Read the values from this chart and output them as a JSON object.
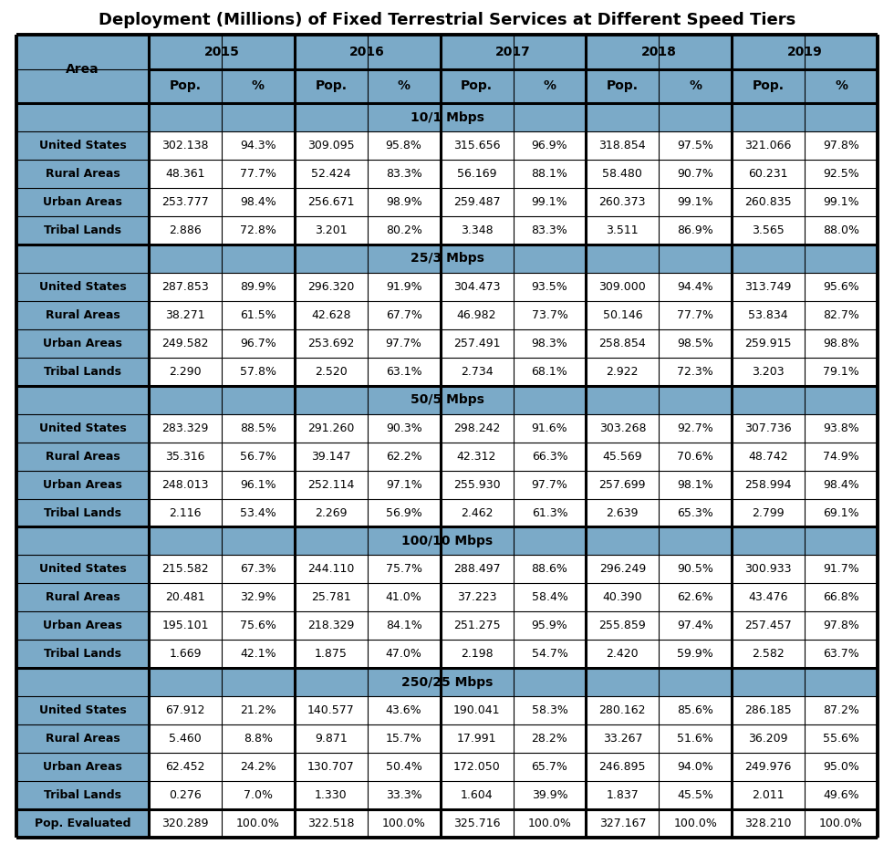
{
  "title": "Deployment (Millions) of Fixed Terrestrial Services at Different Speed Tiers",
  "header_years": [
    "2015",
    "2016",
    "2017",
    "2018",
    "2019"
  ],
  "sections": [
    {
      "tier": "10/1 Mbps",
      "rows": [
        [
          "United States",
          "302.138",
          "94.3%",
          "309.095",
          "95.8%",
          "315.656",
          "96.9%",
          "318.854",
          "97.5%",
          "321.066",
          "97.8%"
        ],
        [
          "Rural Areas",
          "48.361",
          "77.7%",
          "52.424",
          "83.3%",
          "56.169",
          "88.1%",
          "58.480",
          "90.7%",
          "60.231",
          "92.5%"
        ],
        [
          "Urban Areas",
          "253.777",
          "98.4%",
          "256.671",
          "98.9%",
          "259.487",
          "99.1%",
          "260.373",
          "99.1%",
          "260.835",
          "99.1%"
        ],
        [
          "Tribal Lands",
          "2.886",
          "72.8%",
          "3.201",
          "80.2%",
          "3.348",
          "83.3%",
          "3.511",
          "86.9%",
          "3.565",
          "88.0%"
        ]
      ]
    },
    {
      "tier": "25/3 Mbps",
      "rows": [
        [
          "United States",
          "287.853",
          "89.9%",
          "296.320",
          "91.9%",
          "304.473",
          "93.5%",
          "309.000",
          "94.4%",
          "313.749",
          "95.6%"
        ],
        [
          "Rural Areas",
          "38.271",
          "61.5%",
          "42.628",
          "67.7%",
          "46.982",
          "73.7%",
          "50.146",
          "77.7%",
          "53.834",
          "82.7%"
        ],
        [
          "Urban Areas",
          "249.582",
          "96.7%",
          "253.692",
          "97.7%",
          "257.491",
          "98.3%",
          "258.854",
          "98.5%",
          "259.915",
          "98.8%"
        ],
        [
          "Tribal Lands",
          "2.290",
          "57.8%",
          "2.520",
          "63.1%",
          "2.734",
          "68.1%",
          "2.922",
          "72.3%",
          "3.203",
          "79.1%"
        ]
      ]
    },
    {
      "tier": "50/5 Mbps",
      "rows": [
        [
          "United States",
          "283.329",
          "88.5%",
          "291.260",
          "90.3%",
          "298.242",
          "91.6%",
          "303.268",
          "92.7%",
          "307.736",
          "93.8%"
        ],
        [
          "Rural Areas",
          "35.316",
          "56.7%",
          "39.147",
          "62.2%",
          "42.312",
          "66.3%",
          "45.569",
          "70.6%",
          "48.742",
          "74.9%"
        ],
        [
          "Urban Areas",
          "248.013",
          "96.1%",
          "252.114",
          "97.1%",
          "255.930",
          "97.7%",
          "257.699",
          "98.1%",
          "258.994",
          "98.4%"
        ],
        [
          "Tribal Lands",
          "2.116",
          "53.4%",
          "2.269",
          "56.9%",
          "2.462",
          "61.3%",
          "2.639",
          "65.3%",
          "2.799",
          "69.1%"
        ]
      ]
    },
    {
      "tier": "100/10 Mbps",
      "rows": [
        [
          "United States",
          "215.582",
          "67.3%",
          "244.110",
          "75.7%",
          "288.497",
          "88.6%",
          "296.249",
          "90.5%",
          "300.933",
          "91.7%"
        ],
        [
          "Rural Areas",
          "20.481",
          "32.9%",
          "25.781",
          "41.0%",
          "37.223",
          "58.4%",
          "40.390",
          "62.6%",
          "43.476",
          "66.8%"
        ],
        [
          "Urban Areas",
          "195.101",
          "75.6%",
          "218.329",
          "84.1%",
          "251.275",
          "95.9%",
          "255.859",
          "97.4%",
          "257.457",
          "97.8%"
        ],
        [
          "Tribal Lands",
          "1.669",
          "42.1%",
          "1.875",
          "47.0%",
          "2.198",
          "54.7%",
          "2.420",
          "59.9%",
          "2.582",
          "63.7%"
        ]
      ]
    },
    {
      "tier": "250/25 Mbps",
      "rows": [
        [
          "United States",
          "67.912",
          "21.2%",
          "140.577",
          "43.6%",
          "190.041",
          "58.3%",
          "280.162",
          "85.6%",
          "286.185",
          "87.2%"
        ],
        [
          "Rural Areas",
          "5.460",
          "8.8%",
          "9.871",
          "15.7%",
          "17.991",
          "28.2%",
          "33.267",
          "51.6%",
          "36.209",
          "55.6%"
        ],
        [
          "Urban Areas",
          "62.452",
          "24.2%",
          "130.707",
          "50.4%",
          "172.050",
          "65.7%",
          "246.895",
          "94.0%",
          "249.976",
          "95.0%"
        ],
        [
          "Tribal Lands",
          "0.276",
          "7.0%",
          "1.330",
          "33.3%",
          "1.604",
          "39.9%",
          "1.837",
          "45.5%",
          "2.011",
          "49.6%"
        ]
      ]
    }
  ],
  "footer_row": [
    "Pop. Evaluated",
    "320.289",
    "100.0%",
    "322.518",
    "100.0%",
    "325.716",
    "100.0%",
    "327.167",
    "100.0%",
    "328.210",
    "100.0%"
  ],
  "bg_color_header": "#7BAAC8",
  "bg_color_data": "#FFFFFF",
  "title_fontsize": 13,
  "header_fontsize": 10,
  "data_fontsize": 9,
  "tier_fontsize": 10
}
